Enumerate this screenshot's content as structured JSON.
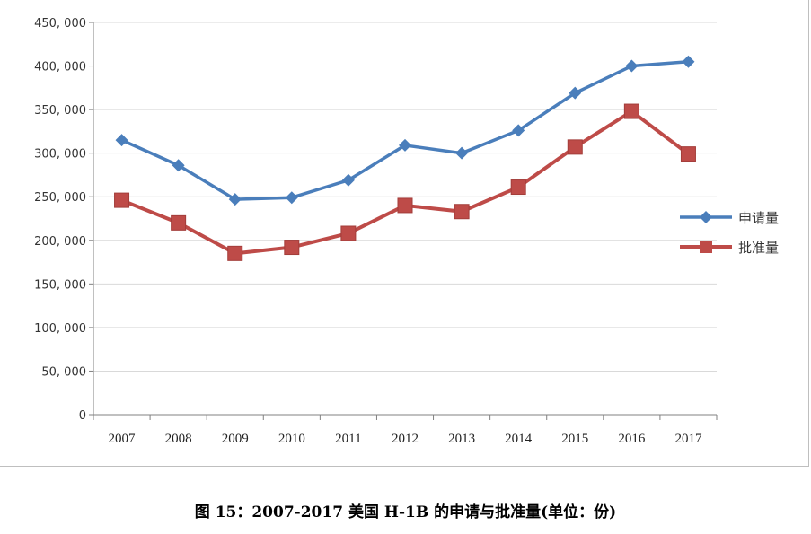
{
  "caption": "图 15：2007-2017 美国 H-1B 的申请与批准量(单位：份)",
  "colors": {
    "applications": "#4a7ebb",
    "approvals": "#be4b48",
    "grid": "#d9d9d9",
    "axis": "#808080"
  },
  "chart_data": {
    "type": "line",
    "categories": [
      "2007",
      "2008",
      "2009",
      "2010",
      "2011",
      "2012",
      "2013",
      "2014",
      "2015",
      "2016",
      "2017"
    ],
    "series": [
      {
        "name": "申请量",
        "marker": "diamond",
        "values": [
          315000,
          286000,
          247000,
          249000,
          269000,
          309000,
          300000,
          326000,
          369000,
          400000,
          405000
        ]
      },
      {
        "name": "批准量",
        "marker": "square",
        "values": [
          246000,
          220000,
          185000,
          192000,
          208000,
          240000,
          233000,
          261000,
          307000,
          348000,
          299000
        ]
      }
    ],
    "y_ticks": [
      "0",
      "50, 000",
      "100, 000",
      "150, 000",
      "200, 000",
      "250, 000",
      "300, 000",
      "350, 000",
      "400, 000",
      "450, 000"
    ],
    "ylim": [
      0,
      450000
    ],
    "grid": true,
    "legend": "right"
  }
}
